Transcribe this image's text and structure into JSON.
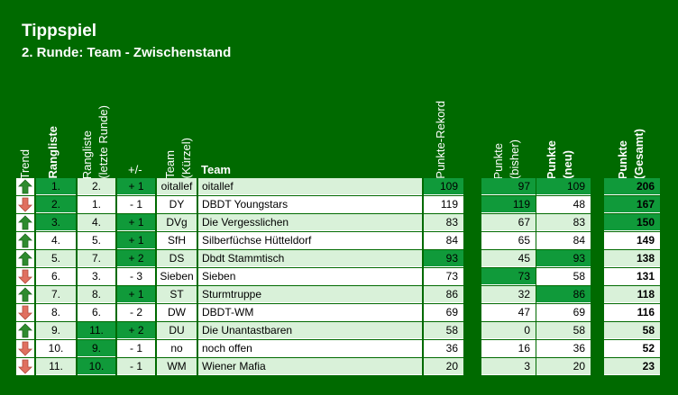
{
  "title": "Tippspiel",
  "subtitle": "2. Runde: Team - Zwischenstand",
  "headers": {
    "trend": "Trend",
    "rangliste": "Rangliste",
    "rangliste_letzte_1": "Rangliste",
    "rangliste_letzte_2": "(letzte Runde)",
    "plusminus": "+/-",
    "team_kurz_1": "Team",
    "team_kurz_2": "(Kürzel)",
    "team": "Team",
    "punkte_rekord": "Punkte-Rekord",
    "punkte_bisher_1": "Punkte",
    "punkte_bisher_2": "(bisher)",
    "punkte_neu_1": "Punkte",
    "punkte_neu_2": "(neu)",
    "punkte_gesamt_1": "Punkte",
    "punkte_gesamt_2": "(Gesamt)"
  },
  "colors": {
    "background": "#006a00",
    "light_row": "#d9f1d9",
    "highlight": "#109a3a",
    "arrow_up": "#2e8b2e",
    "arrow_down": "#e07060"
  },
  "rows": [
    {
      "trend": "up",
      "rang": "1.",
      "letzte": "2.",
      "pm": "+ 1",
      "kurz": "oitallef",
      "team": "oitallef",
      "rekord": "109",
      "bisher": "97",
      "neu": "109",
      "gesamt": "206"
    },
    {
      "trend": "down",
      "rang": "2.",
      "letzte": "1.",
      "pm": "- 1",
      "kurz": "DY",
      "team": "DBDT Youngstars",
      "rekord": "119",
      "bisher": "119",
      "neu": "48",
      "gesamt": "167"
    },
    {
      "trend": "up",
      "rang": "3.",
      "letzte": "4.",
      "pm": "+ 1",
      "kurz": "DVg",
      "team": "Die Vergesslichen",
      "rekord": "83",
      "bisher": "67",
      "neu": "83",
      "gesamt": "150"
    },
    {
      "trend": "up",
      "rang": "4.",
      "letzte": "5.",
      "pm": "+ 1",
      "kurz": "SfH",
      "team": "Silberfüchse Hütteldorf",
      "rekord": "84",
      "bisher": "65",
      "neu": "84",
      "gesamt": "149"
    },
    {
      "trend": "up",
      "rang": "5.",
      "letzte": "7.",
      "pm": "+ 2",
      "kurz": "DS",
      "team": "Dbdt Stammtisch",
      "rekord": "93",
      "bisher": "45",
      "neu": "93",
      "gesamt": "138"
    },
    {
      "trend": "down",
      "rang": "6.",
      "letzte": "3.",
      "pm": "- 3",
      "kurz": "Sieben",
      "team": "Sieben",
      "rekord": "73",
      "bisher": "73",
      "neu": "58",
      "gesamt": "131"
    },
    {
      "trend": "up",
      "rang": "7.",
      "letzte": "8.",
      "pm": "+ 1",
      "kurz": "ST",
      "team": "Sturmtruppe",
      "rekord": "86",
      "bisher": "32",
      "neu": "86",
      "gesamt": "118"
    },
    {
      "trend": "down",
      "rang": "8.",
      "letzte": "6.",
      "pm": "- 2",
      "kurz": "DW",
      "team": "DBDT-WM",
      "rekord": "69",
      "bisher": "47",
      "neu": "69",
      "gesamt": "116"
    },
    {
      "trend": "up",
      "rang": "9.",
      "letzte": "11.",
      "pm": "+ 2",
      "kurz": "DU",
      "team": "Die Unantastbaren",
      "rekord": "58",
      "bisher": "0",
      "neu": "58",
      "gesamt": "58"
    },
    {
      "trend": "down",
      "rang": "10.",
      "letzte": "9.",
      "pm": "- 1",
      "kurz": "no",
      "team": "noch offen",
      "rekord": "36",
      "bisher": "16",
      "neu": "36",
      "gesamt": "52"
    },
    {
      "trend": "down",
      "rang": "11.",
      "letzte": "10.",
      "pm": "- 1",
      "kurz": "WM",
      "team": "Wiener Mafia",
      "rekord": "20",
      "bisher": "3",
      "neu": "20",
      "gesamt": "23"
    }
  ]
}
